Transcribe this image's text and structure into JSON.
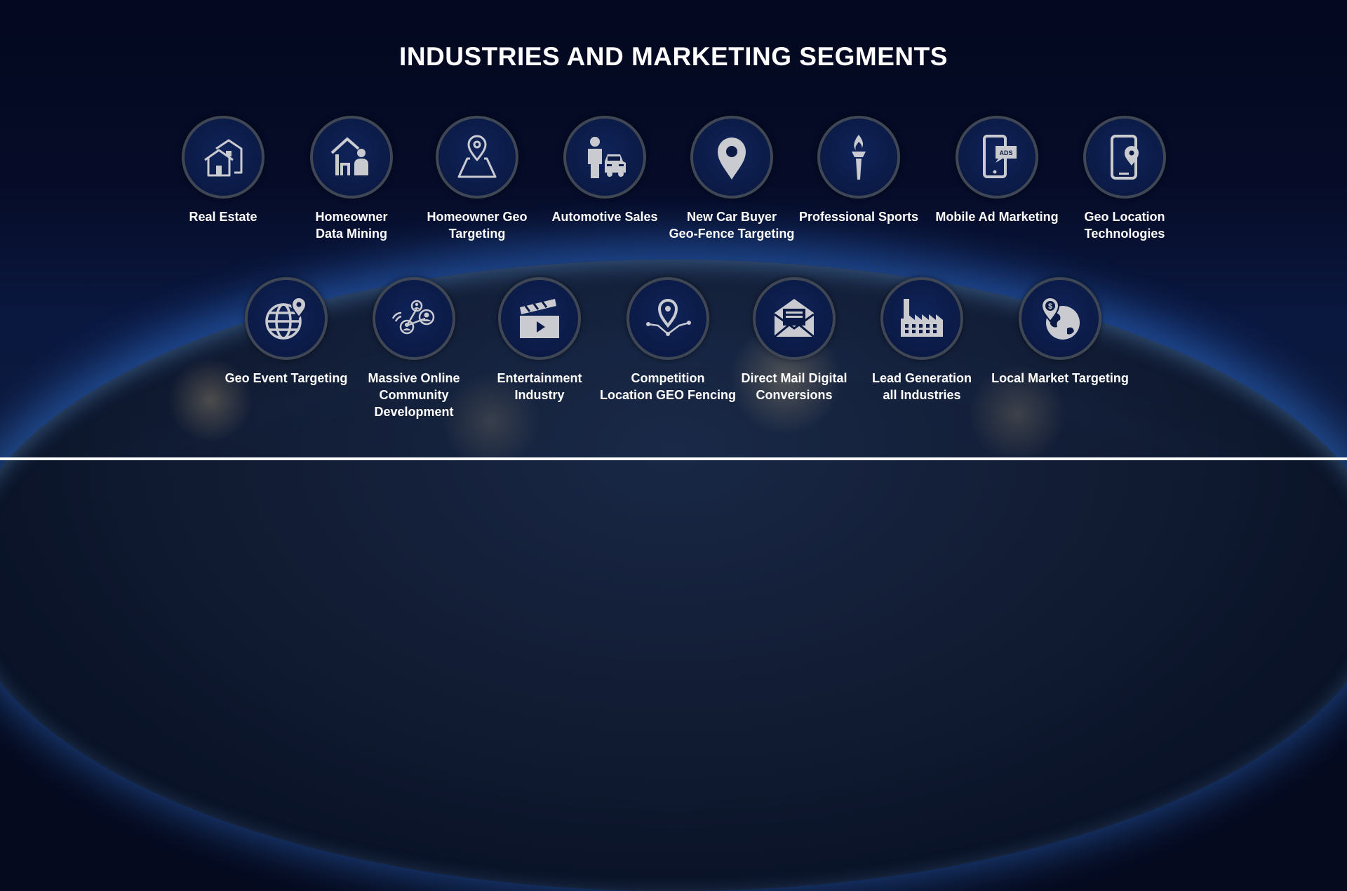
{
  "section": {
    "title": "INDUSTRIES AND MARKETING SEGMENTS"
  },
  "items": [
    {
      "label": "Real Estate",
      "icon": "houses-icon"
    },
    {
      "label": "Homeowner\nData Mining",
      "icon": "house-person-icon"
    },
    {
      "label": "Homeowner Geo\nTargeting",
      "icon": "map-pin-icon"
    },
    {
      "label": "Automotive Sales",
      "icon": "salesman-car-icon"
    },
    {
      "label": "New Car Buyer\nGeo-Fence Targeting",
      "icon": "location-pin-icon"
    },
    {
      "label": "Professional Sports",
      "icon": "torch-icon"
    },
    {
      "label": "Mobile Ad Marketing",
      "icon": "phone-ads-icon"
    },
    {
      "label": "Geo Location\nTechnologies",
      "icon": "phone-pin-icon"
    },
    {
      "label": "Geo Event Targeting",
      "icon": "globe-pin-icon"
    },
    {
      "label": "Massive Online\nCommunity\nDevelopment",
      "icon": "network-users-icon"
    },
    {
      "label": "Entertainment\nIndustry",
      "icon": "clapperboard-icon"
    },
    {
      "label": "Competition\nLocation GEO Fencing",
      "icon": "geofence-pin-icon"
    },
    {
      "label": "Direct Mail Digital\nConversions",
      "icon": "envelope-icon"
    },
    {
      "label": "Lead Generation\nall Industries",
      "icon": "factory-icon"
    },
    {
      "label": "Local Market Targeting",
      "icon": "earth-dollar-pin-icon"
    }
  ],
  "icon_color": "#c9cbd0",
  "ads_badge_text": "ADS"
}
